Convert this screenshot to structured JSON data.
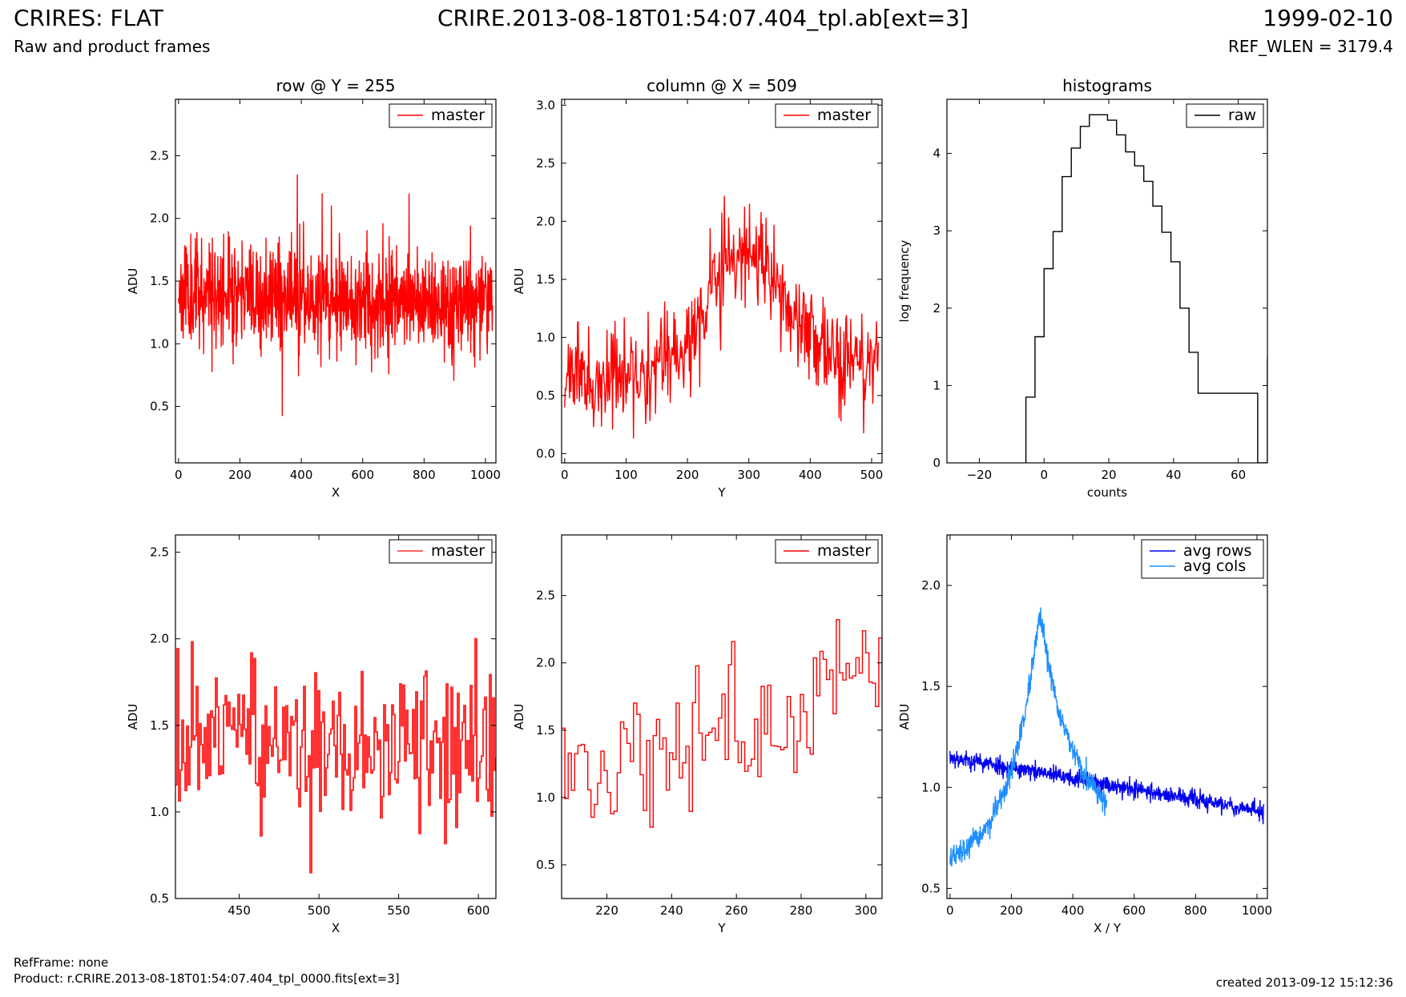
{
  "header": {
    "title": "CRIRES: FLAT",
    "subtitle": "Raw and product frames",
    "file": "CRIRE.2013-08-18T01:54:07.404_tpl.ab[ext=3]",
    "date": "1999-02-10",
    "ref_wlen": "REF_WLEN = 3179.4"
  },
  "footer": {
    "ref_frame": "RefFrame: none",
    "product": "Product: r.CRIRE.2013-08-18T01:54:07.404_tpl_0000.fits[ext=3]",
    "created": "created 2013-09-12 15:12:36"
  },
  "colors": {
    "master": "#ff0000",
    "master_zoom": "#ff3333",
    "raw": "#000000",
    "avg_rows": "#0000ee",
    "avg_cols": "#1e8fff"
  },
  "chart_data": [
    {
      "id": "row",
      "type": "line",
      "title": "row @ Y = 255",
      "xlabel": "X",
      "ylabel": "ADU",
      "xlim": [
        -10,
        1034
      ],
      "ylim": [
        0.05,
        2.95
      ],
      "xticks": [
        0,
        200,
        400,
        600,
        800,
        1000
      ],
      "yticks": [
        0.5,
        1.0,
        1.5,
        2.0,
        2.5
      ],
      "ytick_labels": [
        "0.5",
        "1.0",
        "1.5",
        "2.0",
        "2.5"
      ],
      "legend": "top-right",
      "series": [
        {
          "name": "master",
          "color": "#ff0000",
          "generator": "noise",
          "x_start": 0,
          "x_end": 1023,
          "n": 1024,
          "mean_start": 1.42,
          "mean_end": 1.3,
          "spread": 0.2,
          "min": 0.29,
          "max": 2.35,
          "seed": 11
        }
      ]
    },
    {
      "id": "column",
      "type": "line",
      "title": "column @ X = 509",
      "xlabel": "Y",
      "ylabel": "ADU",
      "xlim": [
        -5,
        517
      ],
      "ylim": [
        -0.08,
        3.05
      ],
      "xticks": [
        0,
        100,
        200,
        300,
        400,
        500
      ],
      "yticks": [
        0.0,
        0.5,
        1.0,
        1.5,
        2.0,
        2.5,
        3.0
      ],
      "ytick_labels": [
        "0.0",
        "0.5",
        "1.0",
        "1.5",
        "2.0",
        "2.5",
        "3.0"
      ],
      "legend": "top-right",
      "series": [
        {
          "name": "master",
          "color": "#ff0000",
          "generator": "peak",
          "x_start": 0,
          "x_end": 511,
          "n": 512,
          "base_start": 0.62,
          "base_end": 0.85,
          "peak_x": 295,
          "peak_height": 0.95,
          "peak_width": 60,
          "spread": 0.2,
          "min": 0.13,
          "max": 2.37,
          "seed": 23
        }
      ]
    },
    {
      "id": "histogram",
      "type": "step",
      "title": "histograms",
      "xlabel": "counts",
      "ylabel": "log frequency",
      "xlim": [
        -30,
        69
      ],
      "ylim": [
        0,
        4.7
      ],
      "xticks": [
        -20,
        0,
        20,
        40,
        60
      ],
      "xtick_labels": [
        "−20",
        "0",
        "20",
        "40",
        "60"
      ],
      "yticks": [
        0,
        1,
        2,
        3,
        4
      ],
      "ytick_labels": [
        "0",
        "1",
        "2",
        "3",
        "4"
      ],
      "legend": "top-right",
      "series": [
        {
          "name": "raw",
          "color": "#000000",
          "x": [
            -5.6,
            -2.8,
            0,
            2.8,
            5.6,
            8.4,
            11.2,
            14,
            16.8,
            19.6,
            22.4,
            25.2,
            28,
            30.8,
            33.6,
            36.4,
            39.2,
            42,
            44.8,
            47.6,
            66,
            69
          ],
          "y": [
            0.85,
            1.63,
            2.51,
            2.99,
            3.7,
            4.07,
            4.35,
            4.5,
            4.5,
            4.43,
            4.24,
            4.02,
            3.84,
            3.64,
            3.32,
            2.98,
            2.6,
            2.0,
            1.43,
            0.9,
            0,
            1.35
          ]
        }
      ]
    },
    {
      "id": "row-zoom",
      "type": "step",
      "xlabel": "X",
      "ylabel": "ADU",
      "xlim": [
        410,
        611
      ],
      "ylim": [
        0.5,
        2.6
      ],
      "xticks": [
        450,
        500,
        550,
        600
      ],
      "yticks": [
        0.5,
        1.0,
        1.5,
        2.0,
        2.5
      ],
      "ytick_labels": [
        "0.5",
        "1.0",
        "1.5",
        "2.0",
        "2.5"
      ],
      "legend": "top-right",
      "series": [
        {
          "name": "master",
          "color": "#ff3333",
          "generator": "noise",
          "x_start": 410,
          "x_end": 611,
          "n": 201,
          "mean_start": 1.4,
          "mean_end": 1.33,
          "spread": 0.22,
          "min": 0.65,
          "max": 2.16,
          "seed": 37
        }
      ]
    },
    {
      "id": "column-zoom",
      "type": "step",
      "xlabel": "Y",
      "ylabel": "ADU",
      "xlim": [
        206,
        305
      ],
      "ylim": [
        0.25,
        2.95
      ],
      "xticks": [
        220,
        240,
        260,
        280,
        300
      ],
      "yticks": [
        0.5,
        1.0,
        1.5,
        2.0,
        2.5
      ],
      "ytick_labels": [
        "0.5",
        "1.0",
        "1.5",
        "2.0",
        "2.5"
      ],
      "legend": "top-right",
      "series": [
        {
          "name": "master",
          "color": "#ff0000",
          "generator": "trend",
          "x_start": 206,
          "x_end": 305,
          "n": 99,
          "mean_start": 1.1,
          "mean_end": 1.95,
          "spread": 0.25,
          "min": 0.78,
          "max": 2.37,
          "seed": 41
        }
      ]
    },
    {
      "id": "averages",
      "type": "line",
      "xlabel": "X / Y",
      "ylabel": "ADU",
      "xlim": [
        -10,
        1034
      ],
      "ylim": [
        0.45,
        2.25
      ],
      "xticks": [
        0,
        200,
        400,
        600,
        800,
        1000
      ],
      "yticks": [
        0.5,
        1.0,
        1.5,
        2.0
      ],
      "ytick_labels": [
        "0.5",
        "1.0",
        "1.5",
        "2.0"
      ],
      "legend": "top-right",
      "series": [
        {
          "name": "avg rows",
          "color": "#0000ee",
          "generator": "linear",
          "x_start": 0,
          "x_end": 1023,
          "n": 1024,
          "mean_start": 1.15,
          "mean_end": 0.88,
          "spread": 0.022,
          "seed": 53
        },
        {
          "name": "avg cols",
          "color": "#1e8fff",
          "generator": "cusp",
          "x_start": 0,
          "x_end": 511,
          "n": 512,
          "peak_x": 292,
          "peak_height": 1.86,
          "left_base": 0.58,
          "right_base": 0.8,
          "spread": 0.03,
          "seed": 67
        }
      ]
    }
  ]
}
